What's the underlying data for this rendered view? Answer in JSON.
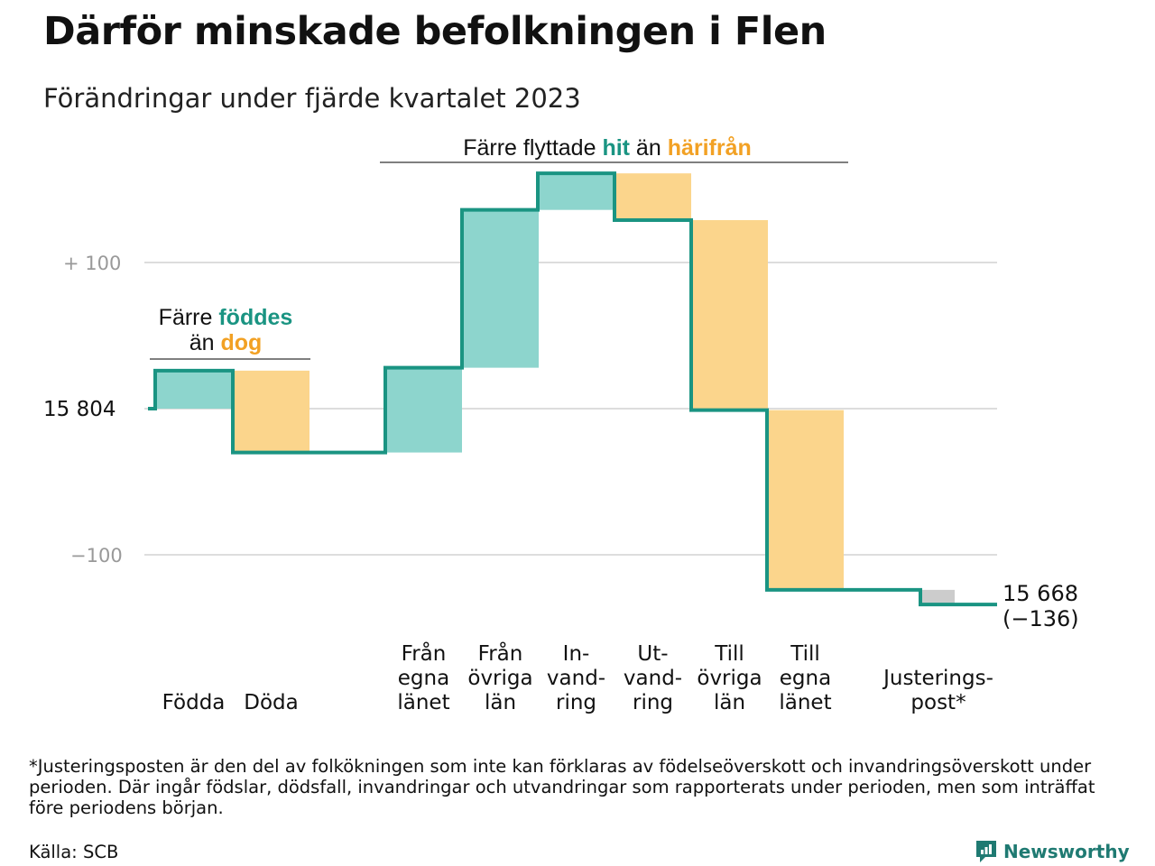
{
  "header": {
    "title": "Därför minskade befolkningen i Flen",
    "subtitle": "Förändringar under fjärde kvartalet 2023"
  },
  "colors": {
    "increase": "#8dd5cd",
    "decrease": "#fbd58c",
    "adjustment": "#cccccc",
    "line": "#1a9482",
    "label_teal": "#1a9482",
    "label_orange": "#f2a124",
    "grid": "#dddddd",
    "tick_text": "#999999"
  },
  "chart_data": {
    "type": "waterfall",
    "start_value": 15804,
    "end_value": 15668,
    "end_label": "15 668",
    "end_change_label": "(−136)",
    "start_label": "15  804",
    "y_ticks": [
      {
        "offset": 100,
        "label": "+  100"
      },
      {
        "offset": 0,
        "label": "15  804"
      },
      {
        "offset": -100,
        "label": "−100"
      }
    ],
    "ylim_offset": [
      -180,
      200
    ],
    "steps": [
      {
        "label": [
          "Födda"
        ],
        "delta": 26,
        "kind": "increase"
      },
      {
        "label": [
          "Döda"
        ],
        "delta": -56,
        "kind": "decrease"
      },
      {
        "label": [],
        "delta": 0,
        "kind": "gap"
      },
      {
        "label": [
          "Från",
          "egna",
          "länet"
        ],
        "delta": 58,
        "kind": "increase"
      },
      {
        "label": [
          "Från",
          "övriga",
          "län"
        ],
        "delta": 108,
        "kind": "increase"
      },
      {
        "label": [
          "In-",
          "vand-",
          "ring"
        ],
        "delta": 25,
        "kind": "increase"
      },
      {
        "label": [
          "Ut-",
          "vand-",
          "ring"
        ],
        "delta": -32,
        "kind": "decrease"
      },
      {
        "label": [
          "Till",
          "övriga",
          "län"
        ],
        "delta": -130,
        "kind": "decrease"
      },
      {
        "label": [
          "Till",
          "egna",
          "länet"
        ],
        "delta": -123,
        "kind": "decrease"
      },
      {
        "label": [],
        "delta": 0,
        "kind": "gap"
      },
      {
        "label": [
          "Justerings-",
          "post*"
        ],
        "delta": -10,
        "kind": "adjustment"
      }
    ],
    "annotations": [
      {
        "id": "births",
        "parts": [
          [
            {
              "text": "Färre ",
              "color": "text",
              "bold": false
            },
            {
              "text": "föddes",
              "color": "teal",
              "bold": true
            }
          ],
          [
            {
              "text": "än ",
              "color": "text",
              "bold": false
            },
            {
              "text": "dog",
              "color": "orange",
              "bold": true
            }
          ]
        ]
      },
      {
        "id": "moves",
        "parts": [
          [
            {
              "text": "Färre flyttade ",
              "color": "text",
              "bold": false
            },
            {
              "text": "hit",
              "color": "teal",
              "bold": true
            },
            {
              "text": " än ",
              "color": "text",
              "bold": false
            },
            {
              "text": "härifrån",
              "color": "orange",
              "bold": true
            }
          ]
        ]
      }
    ]
  },
  "footer": {
    "note": "*Justeringsposten är den del av folkökningen som inte kan förklaras av födelseöverskott och invandringsöverskott under perioden. Där ingår födslar, dödsfall, invandringar och utvandringar som rapporterats under perioden, men som inträffat före periodens början.",
    "source": "Källa: SCB",
    "brand": "Newsworthy",
    "brand_icon": "newsworthy-logo-icon"
  }
}
